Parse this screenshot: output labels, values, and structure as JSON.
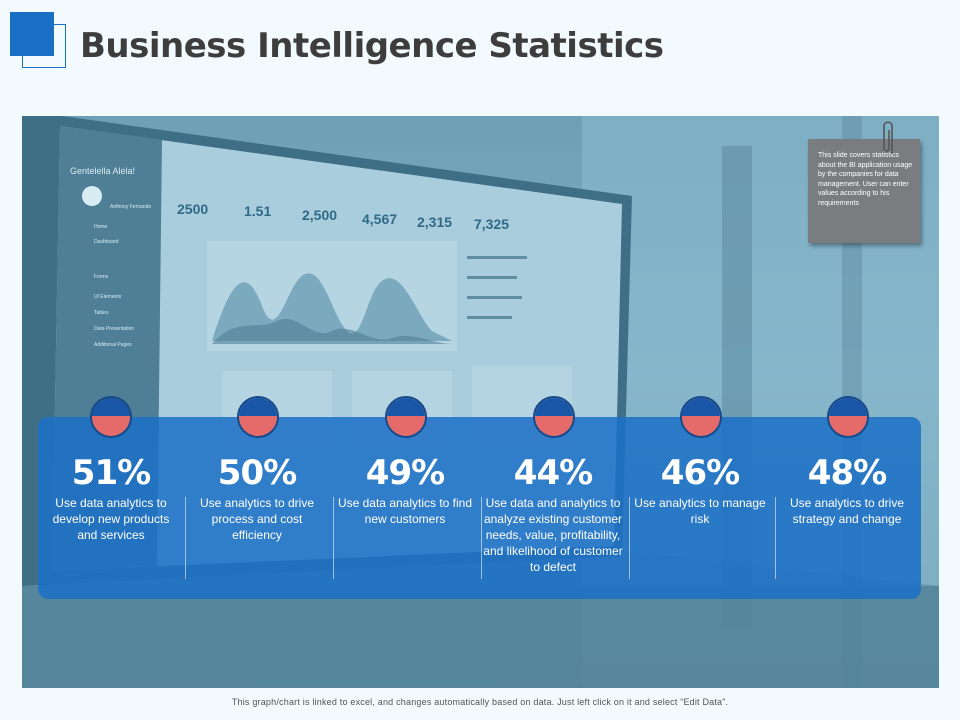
{
  "header": {
    "title": "Business Intelligence Statistics"
  },
  "note": {
    "text": "This slide covers statistics about the BI application usage by the companies for data management. User can enter values according to his requirements"
  },
  "background": {
    "dashboard_title": "Gentelella Alela!",
    "welcome_name": "Anthony Fernando",
    "tiles": [
      "2500",
      "1.51",
      "2,500",
      "4,567",
      "2,315",
      "7,325"
    ],
    "menu": [
      "Home",
      "Dashboard",
      "Forms",
      "UI Elements",
      "Tables",
      "Data Presentation",
      "Additional Pages"
    ]
  },
  "stats": [
    {
      "value": "51%",
      "text": "Use data analytics to develop new products and services"
    },
    {
      "value": "50%",
      "text": "Use analytics to drive process and cost efficiency"
    },
    {
      "value": "49%",
      "text": "Use data analytics to find new customers"
    },
    {
      "value": "44%",
      "text": "Use data and analytics to analyze existing customer needs, value, profitability, and likelihood of customer to defect"
    },
    {
      "value": "46%",
      "text": "Use analytics to manage risk"
    },
    {
      "value": "48%",
      "text": "Use analytics to drive strategy and change"
    }
  ],
  "footer": {
    "text": "This graph/chart is linked to excel, and changes automatically based on data. Just left click on it and select “Edit Data”."
  },
  "colors": {
    "accent": "#1a6fc4",
    "panel": "#1c70c6",
    "ball_top": "#1a56a8",
    "ball_bottom": "#e56b6a"
  }
}
